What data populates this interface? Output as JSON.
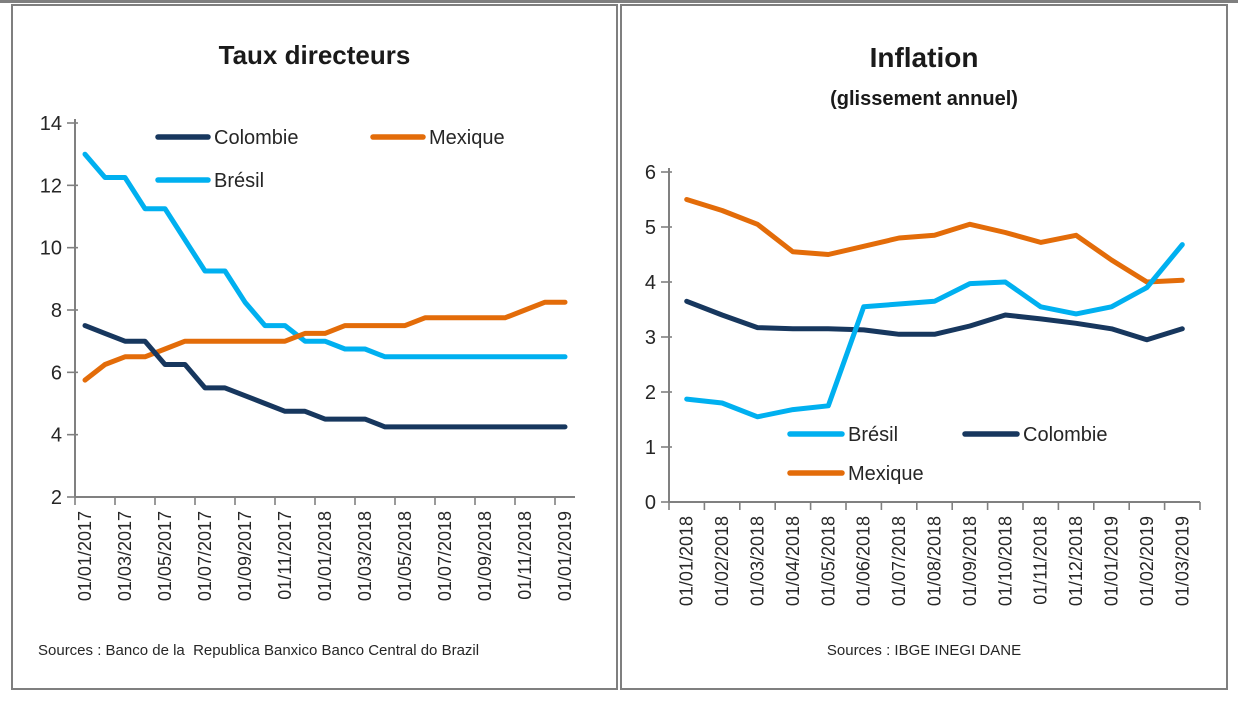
{
  "colors": {
    "axis": "#808080",
    "text": "#262626",
    "panel_border": "#7F7F7F"
  },
  "panels": [
    {
      "source": "Sources : Banco de la  Republica Banxico Banco Central do Brazil",
      "chart_data": {
        "type": "line",
        "title": "Taux directeurs",
        "subtitle": "",
        "ylim": [
          2,
          14
        ],
        "ytick_step": 2,
        "grid": false,
        "legend_position": "inside-top",
        "legend_rows": [
          [
            "Colombie",
            "Mexique"
          ],
          [
            "Brésil"
          ]
        ],
        "x_tick_labels": [
          "01/01/2017",
          "01/03/2017",
          "01/05/2017",
          "01/07/2017",
          "01/09/2017",
          "01/11/2017",
          "01/01/2018",
          "01/03/2018",
          "01/05/2018",
          "01/07/2018",
          "01/09/2018",
          "01/11/2018",
          "01/01/2019"
        ],
        "x_frequency": "monthly, labels every 2 months",
        "series": [
          {
            "name": "Brésil",
            "color": "#00B0F0",
            "values": [
              13.0,
              12.25,
              12.25,
              11.25,
              11.25,
              10.25,
              9.25,
              9.25,
              8.25,
              7.5,
              7.5,
              7.0,
              7.0,
              6.75,
              6.75,
              6.5,
              6.5,
              6.5,
              6.5,
              6.5,
              6.5,
              6.5,
              6.5,
              6.5,
              6.5
            ]
          },
          {
            "name": "Mexique",
            "color": "#E36C09",
            "values": [
              5.75,
              6.25,
              6.5,
              6.5,
              6.75,
              7.0,
              7.0,
              7.0,
              7.0,
              7.0,
              7.0,
              7.25,
              7.25,
              7.5,
              7.5,
              7.5,
              7.5,
              7.75,
              7.75,
              7.75,
              7.75,
              7.75,
              8.0,
              8.25,
              8.25
            ]
          },
          {
            "name": "Colombie",
            "color": "#17375E",
            "values": [
              7.5,
              7.25,
              7.0,
              7.0,
              6.25,
              6.25,
              5.5,
              5.5,
              5.25,
              5.0,
              4.75,
              4.75,
              4.5,
              4.5,
              4.5,
              4.25,
              4.25,
              4.25,
              4.25,
              4.25,
              4.25,
              4.25,
              4.25,
              4.25,
              4.25
            ]
          }
        ]
      }
    },
    {
      "source": "Sources : IBGE INEGI DANE",
      "chart_data": {
        "type": "line",
        "title": "Inflation",
        "subtitle": "(glissement annuel)",
        "ylim": [
          0,
          6
        ],
        "ytick_step": 1,
        "grid": false,
        "legend_position": "inside-bottom",
        "legend_rows": [
          [
            "Brésil",
            "Colombie"
          ],
          [
            "Mexique"
          ]
        ],
        "x_tick_labels": [
          "01/01/2018",
          "01/02/2018",
          "01/03/2018",
          "01/04/2018",
          "01/05/2018",
          "01/06/2018",
          "01/07/2018",
          "01/08/2018",
          "01/09/2018",
          "01/10/2018",
          "01/11/2018",
          "01/12/2018",
          "01/01/2019",
          "01/02/2019",
          "01/03/2019"
        ],
        "x_frequency": "monthly",
        "series": [
          {
            "name": "Colombie",
            "color": "#17375E",
            "values": [
              3.65,
              3.4,
              3.17,
              3.15,
              3.15,
              3.13,
              3.05,
              3.05,
              3.2,
              3.4,
              3.33,
              3.25,
              3.15,
              2.95,
              3.15
            ]
          },
          {
            "name": "Mexique",
            "color": "#E36C09",
            "values": [
              5.5,
              5.3,
              5.05,
              4.55,
              4.5,
              4.65,
              4.8,
              4.85,
              5.05,
              4.9,
              4.72,
              4.85,
              4.4,
              4.0,
              4.03
            ]
          },
          {
            "name": "Brésil",
            "color": "#00B0F0",
            "values": [
              1.87,
              1.8,
              1.55,
              1.68,
              1.75,
              3.55,
              3.6,
              3.65,
              3.97,
              4.0,
              3.55,
              3.42,
              3.55,
              3.9,
              4.68
            ]
          }
        ]
      }
    }
  ]
}
